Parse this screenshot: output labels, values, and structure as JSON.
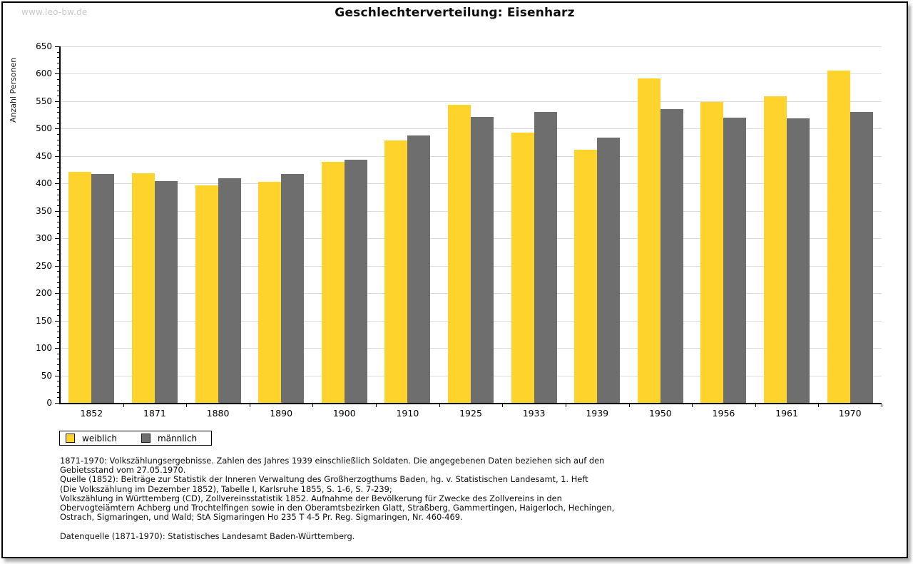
{
  "watermark": "www.leo-bw.de",
  "header": {
    "title": "Geschlechterverteilung: Eisenharz"
  },
  "chart_data": {
    "type": "bar",
    "title": "Geschlechterverteilung: Eisenharz",
    "xlabel": "",
    "ylabel": "Anzahl Personen",
    "categories": [
      "1852",
      "1871",
      "1880",
      "1890",
      "1900",
      "1910",
      "1925",
      "1933",
      "1939",
      "1950",
      "1956",
      "1961",
      "1970"
    ],
    "series": [
      {
        "name": "weiblich",
        "color": "#FDD32C",
        "values": [
          421,
          419,
          396,
          403,
          440,
          478,
          543,
          493,
          462,
          592,
          548,
          559,
          606
        ]
      },
      {
        "name": "männlich",
        "color": "#6E6E6E",
        "values": [
          417,
          404,
          409,
          417,
          443,
          488,
          521,
          531,
          483,
          535,
          520,
          519,
          531
        ]
      }
    ],
    "ylim": [
      0,
      650
    ],
    "ytick_step": 50,
    "yminor_step": 10,
    "grid": true,
    "gridcolor": "#DDDDDD",
    "legend_position": "bottom-left"
  },
  "footnotes": {
    "lines": [
      "1871-1970: Volkszählungsergebnisse. Zahlen des Jahres 1939 einschließlich Soldaten. Die angegebenen Daten beziehen sich auf den",
      "Gebietsstand vom 27.05.1970.",
      "Quelle (1852): Beiträge zur Statistik der Inneren Verwaltung des Großherzogthums Baden, hg. v. Statistischen Landesamt, 1. Heft",
      "(Die Volkszählung im Dezember 1852), Tabelle I, Karlsruhe 1855, S. 1-6, S. 7-239;",
      "Volkszählung in Württemberg (CD), Zollvereinsstatistik 1852. Aufnahme der Bevölkerung für Zwecke des Zollvereins in den",
      "Obervogteiämtern Achberg und Trochtelfingen sowie in den Oberamtsbezirken Glatt, Straßberg, Gammertingen, Haigerloch, Hechingen,",
      "Ostrach, Sigmaringen, und Wald; StA Sigmaringen Ho 235 T 4-5 Pr. Reg. Sigmaringen, Nr. 460-469.",
      "",
      "Datenquelle (1871-1970): Statistisches Landesamt Baden-Württemberg."
    ]
  }
}
